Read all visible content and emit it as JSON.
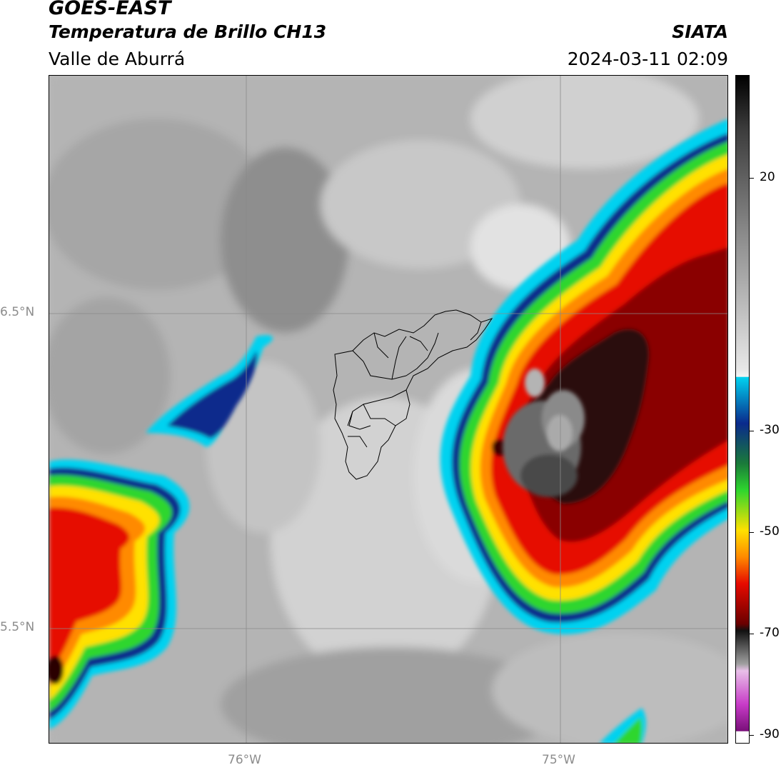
{
  "header": {
    "satellite": "GOES-EAST",
    "product": "Temperatura de Brillo CH13",
    "region": "Valle de Aburrá",
    "organization": "SIATA",
    "timestamp": "2024-03-11 02:09"
  },
  "map": {
    "lat_labels": [
      "6.5°N",
      "5.5°N"
    ],
    "lon_labels": [
      "76°W",
      "75°W"
    ],
    "gridlines": true,
    "overlay": "Valle de Aburrá municipal boundaries"
  },
  "colorbar": {
    "tick_labels": [
      "20",
      "-30",
      "-50",
      "-70",
      "-90"
    ],
    "scale": "grayscale above ~-20, cyan-blue-green-yellow-orange-red-darkred from -20 to -70, gray then magenta below -70",
    "colors": {
      "warm_gray": "#b9b9b9",
      "cyan": "#00d2f0",
      "blue": "#0a2a8c",
      "green": "#2ed62e",
      "yellow": "#ffe100",
      "orange": "#ff8a00",
      "red": "#e60a00",
      "dark_red": "#5a0000",
      "black": "#111111",
      "magenta": "#c83cc8"
    }
  }
}
